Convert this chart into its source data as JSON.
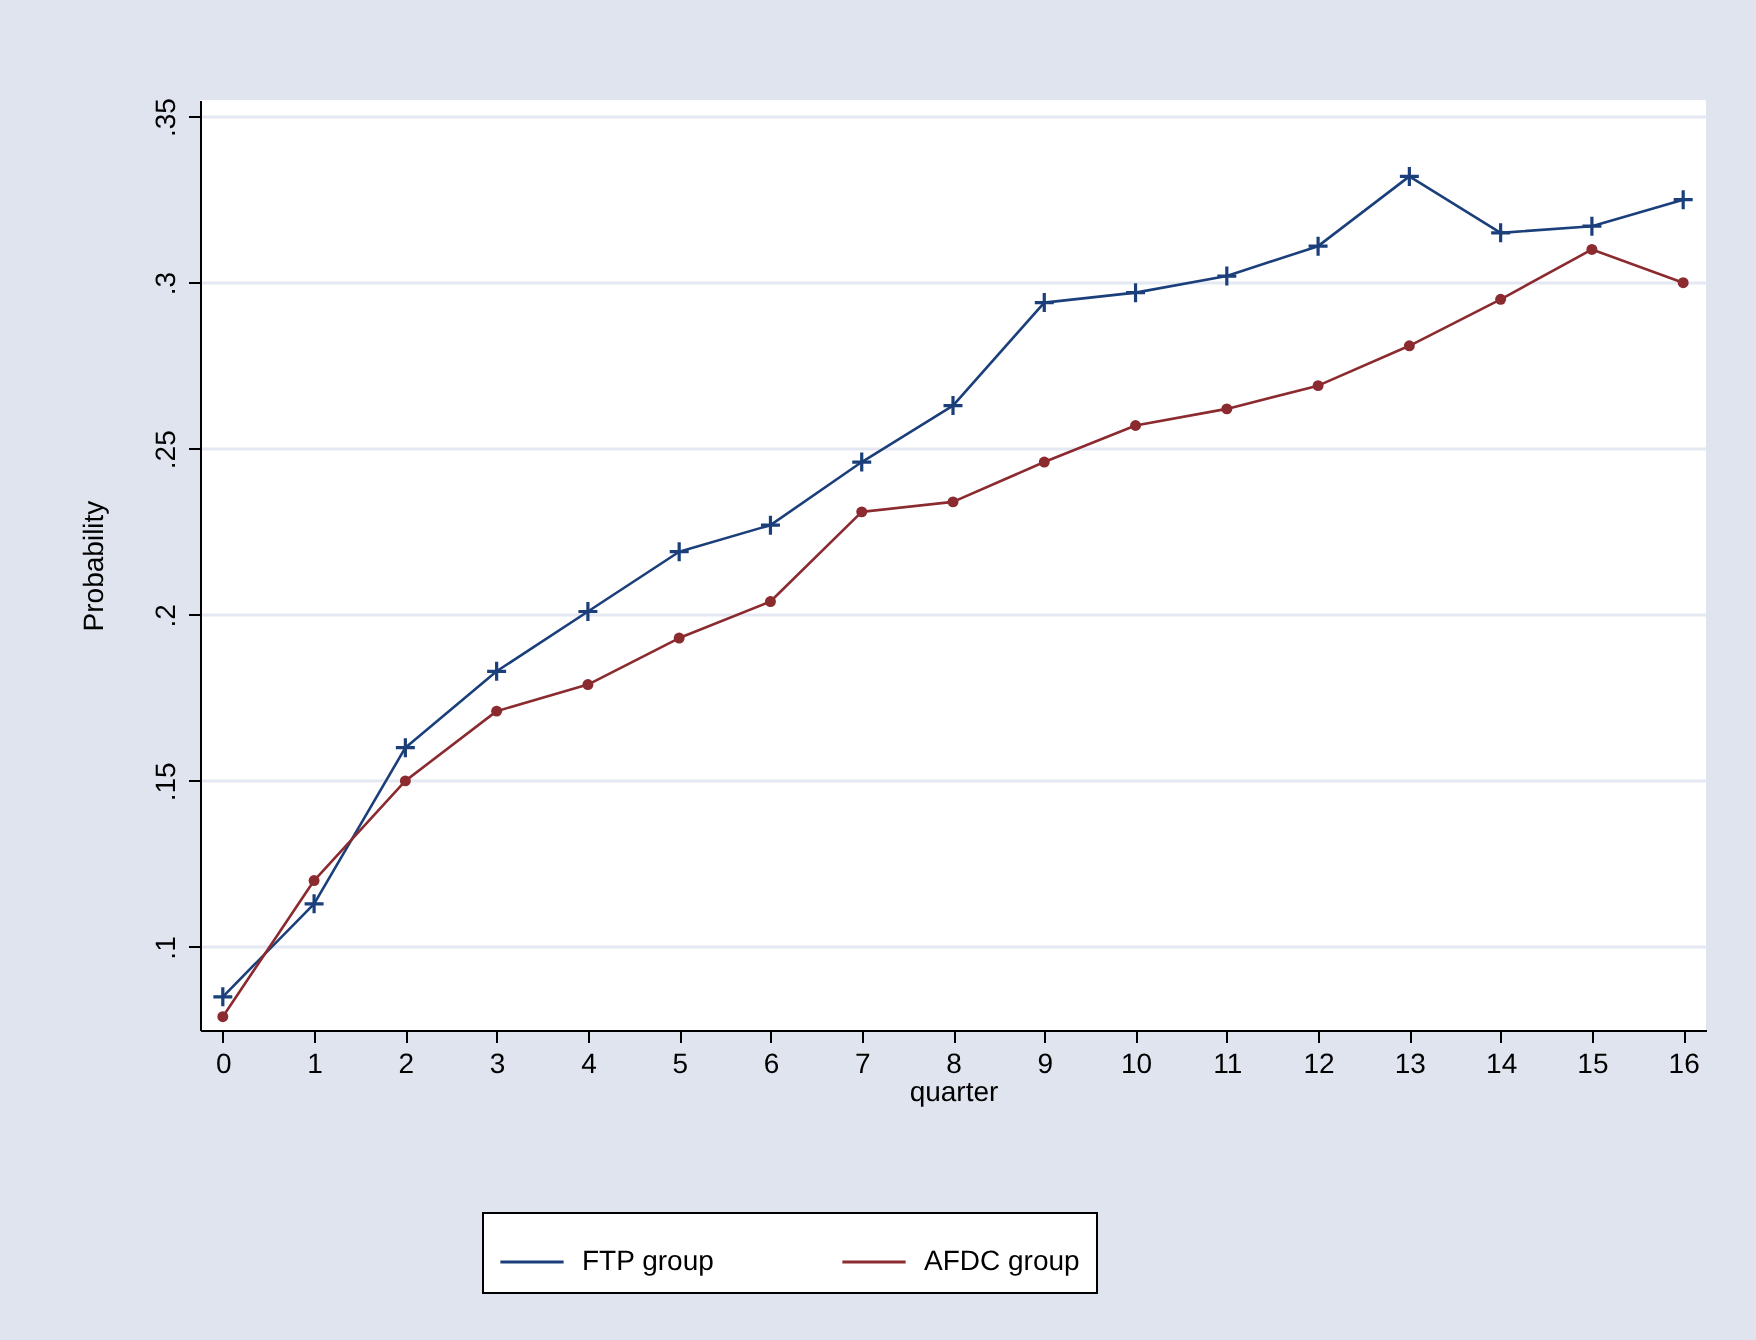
{
  "chart_data": {
    "type": "line",
    "xlabel": "quarter",
    "ylabel": "Probability",
    "x": [
      0,
      1,
      2,
      3,
      4,
      5,
      6,
      7,
      8,
      9,
      10,
      11,
      12,
      13,
      14,
      15,
      16
    ],
    "series": [
      {
        "name": "FTP group",
        "color": "#1a3f7a",
        "marker": "cross",
        "values": [
          0.085,
          0.113,
          0.16,
          0.183,
          0.201,
          0.219,
          0.227,
          0.246,
          0.263,
          0.294,
          0.297,
          0.302,
          0.311,
          0.332,
          0.315,
          0.317,
          0.325
        ]
      },
      {
        "name": "AFDC group",
        "color": "#8b2a2f",
        "marker": "circle",
        "values": [
          0.079,
          0.12,
          0.15,
          0.171,
          0.179,
          0.193,
          0.204,
          0.231,
          0.234,
          0.246,
          0.257,
          0.262,
          0.269,
          0.281,
          0.295,
          0.31,
          0.3
        ]
      }
    ],
    "xlim": [
      -0.25,
      16.25
    ],
    "xticks": [
      0,
      1,
      2,
      3,
      4,
      5,
      6,
      7,
      8,
      9,
      10,
      11,
      12,
      13,
      14,
      15,
      16
    ],
    "ylim": [
      0.075,
      0.355
    ],
    "yticks": [
      {
        "value": 0.1,
        "label": ".1"
      },
      {
        "value": 0.15,
        "label": ".15"
      },
      {
        "value": 0.2,
        "label": ".2"
      },
      {
        "value": 0.25,
        "label": ".25"
      },
      {
        "value": 0.3,
        "label": ".3"
      },
      {
        "value": 0.35,
        "label": ".35"
      }
    ],
    "grid": "y",
    "legend": "bottom",
    "line_style": "solid"
  }
}
